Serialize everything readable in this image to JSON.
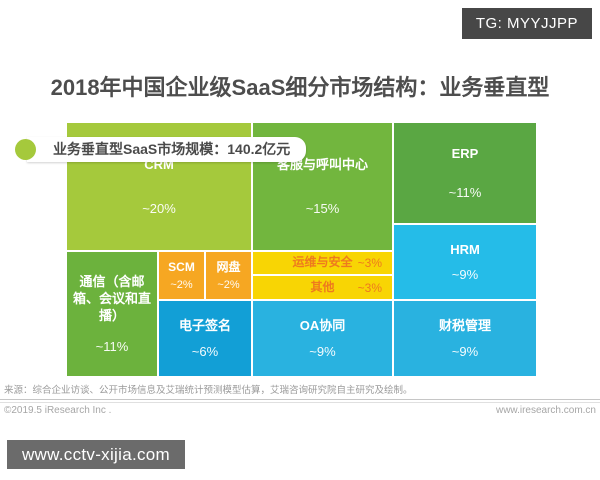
{
  "badge": {
    "label": "TG: MYYJJPP"
  },
  "header": {
    "title": "2018年中国企业级SaaS细分市场结构：业务垂直型"
  },
  "legend": {
    "label": "业务垂直型SaaS市场规模：140.2亿元"
  },
  "chart_data": {
    "type": "treemap",
    "title": "2018年中国企业级SaaS细分市场结构：业务垂直型",
    "total_label": "业务垂直型SaaS市场规模：140.2亿元",
    "total_value": 140.2,
    "total_unit": "亿元",
    "value_meaning": "approximate share of vertical-business SaaS market",
    "items": [
      {
        "label": "CRM",
        "share_pct": 20,
        "display": "~20%",
        "color": "#a5c93c"
      },
      {
        "label": "客服与呼叫中心",
        "share_pct": 15,
        "display": "~15%",
        "color": "#72b63e"
      },
      {
        "label": "ERP",
        "share_pct": 11,
        "display": "~11%",
        "color": "#5aa743"
      },
      {
        "label": "通信（含邮箱、会议和直播）",
        "share_pct": 11,
        "display": "~11%",
        "color": "#6cb23d"
      },
      {
        "label": "SCM",
        "share_pct": 2,
        "display": "~2%",
        "color": "#f6a722"
      },
      {
        "label": "网盘",
        "share_pct": 2,
        "display": "~2%",
        "color": "#f6a722"
      },
      {
        "label": "运维与安全",
        "share_pct": 3,
        "display": "~3%",
        "color": "#f8d504"
      },
      {
        "label": "其他",
        "share_pct": 3,
        "display": "~3%",
        "color": "#f8d504"
      },
      {
        "label": "HRM",
        "share_pct": 9,
        "display": "~9%",
        "color": "#25bce8"
      },
      {
        "label": "电子签名",
        "share_pct": 6,
        "display": "~6%",
        "color": "#129fd6"
      },
      {
        "label": "OA协同",
        "share_pct": 9,
        "display": "~9%",
        "color": "#29b2e0"
      },
      {
        "label": "财税管理",
        "share_pct": 9,
        "display": "~9%",
        "color": "#29b2e0"
      }
    ]
  },
  "footer": {
    "source": "来源：综合企业访谈、公开市场信息及艾瑞统计预测模型估算，艾瑞咨询研究院自主研究及绘制。",
    "copyright": "©2019.5 iResearch Inc .",
    "website": "www.iresearch.com.cn"
  },
  "watermark": {
    "label": "www.cctv-xijia.com"
  }
}
